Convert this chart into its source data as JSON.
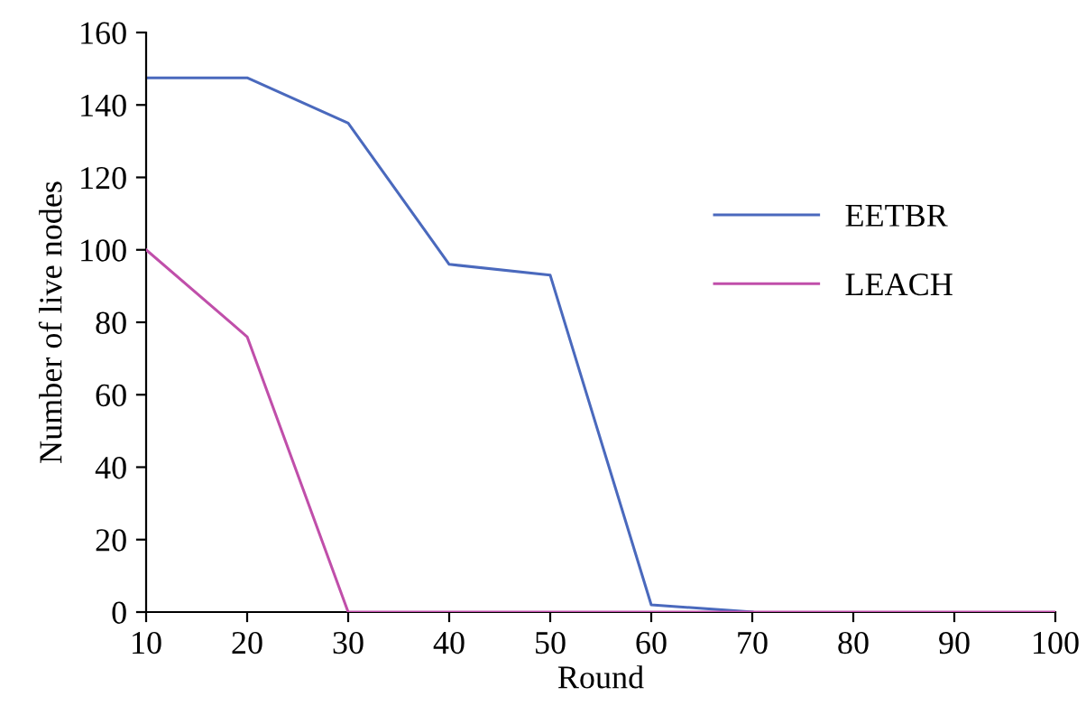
{
  "chart_data": {
    "type": "line",
    "xlabel": "Round",
    "ylabel": "Number of live nodes",
    "x": [
      10,
      20,
      30,
      40,
      50,
      60,
      70,
      80,
      90,
      100
    ],
    "series": [
      {
        "name": "EETBR",
        "color": "#4a69bd",
        "values": [
          147.5,
          147.5,
          135,
          96,
          93,
          2,
          0,
          null,
          null,
          null
        ]
      },
      {
        "name": "LEACH",
        "color": "#c04faa",
        "values": [
          100,
          76,
          0,
          0,
          0,
          0,
          0,
          0,
          0,
          0
        ]
      }
    ],
    "xlim": [
      10,
      100
    ],
    "xticks": [
      10,
      20,
      30,
      40,
      50,
      60,
      70,
      80,
      90,
      100
    ],
    "ylim": [
      0,
      160
    ],
    "yticks": [
      0,
      20,
      40,
      60,
      80,
      100,
      120,
      140,
      160
    ],
    "grid": false,
    "legend": "right",
    "marker": "none",
    "line_style": "solid"
  }
}
